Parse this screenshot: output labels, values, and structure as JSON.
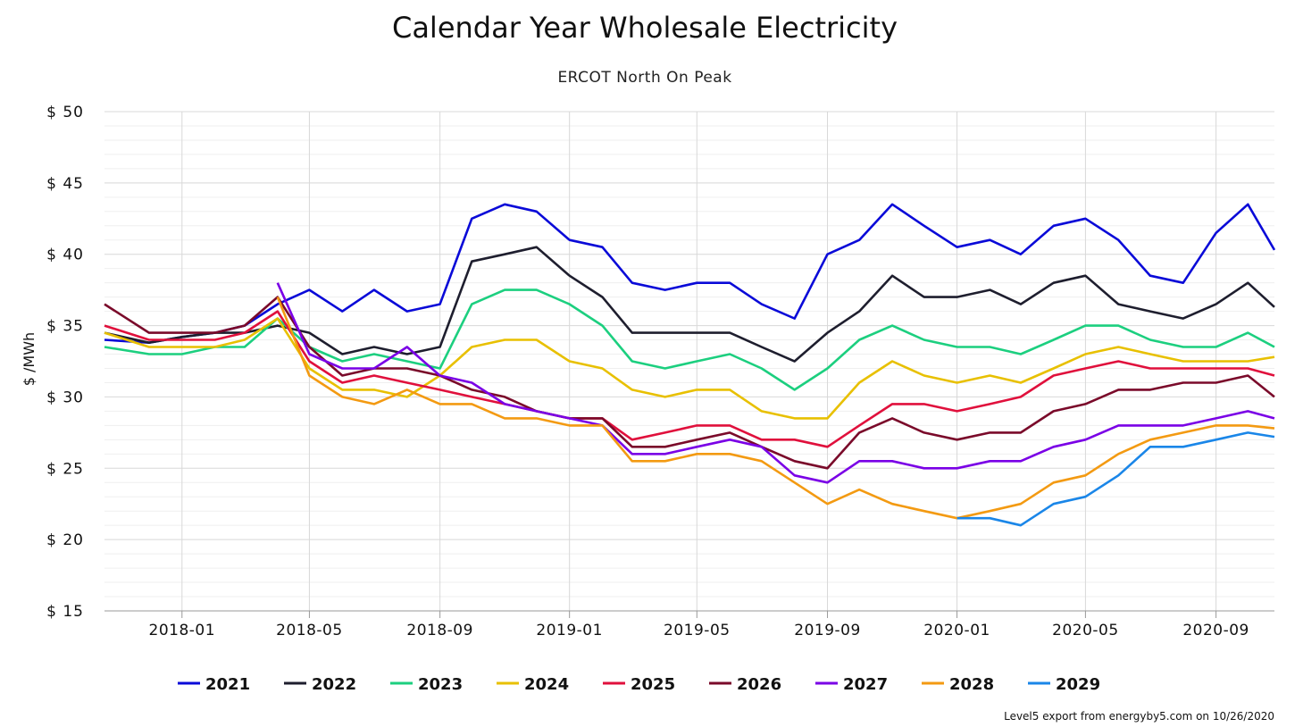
{
  "chart_data": {
    "type": "line",
    "title": "Calendar Year Wholesale Electricity",
    "subtitle": "ERCOT North On Peak",
    "ylabel": "$ /MWh",
    "xlabel": "",
    "ylim": [
      15,
      50
    ],
    "y_ticks": [
      50,
      45,
      40,
      35,
      30,
      25,
      20,
      15
    ],
    "y_tick_labels": [
      "$ 50",
      "$ 45",
      "$ 40",
      "$ 35",
      "$ 30",
      "$ 25",
      "$ 20",
      "$ 15"
    ],
    "xlim": [
      "2017-10-20",
      "2020-10-26"
    ],
    "x_ticks": [
      "2018-01-01",
      "2018-05-01",
      "2018-09-01",
      "2019-01-01",
      "2019-05-01",
      "2019-09-01",
      "2020-01-01",
      "2020-05-01",
      "2020-09-01"
    ],
    "x_tick_labels": [
      "2018-01",
      "2018-05",
      "2018-09",
      "2019-01",
      "2019-05",
      "2019-09",
      "2020-01",
      "2020-05",
      "2020-09"
    ],
    "grid": true,
    "legend_position": "bottom",
    "credit": "Level5 export from energyby5.com on 10/26/2020",
    "series": [
      {
        "name": "2021",
        "color": "#0a0ad8",
        "x": [
          "2017-10-20",
          "2017-12-01",
          "2018-01-01",
          "2018-02-01",
          "2018-03-01",
          "2018-04-01",
          "2018-05-01",
          "2018-06-01",
          "2018-07-01",
          "2018-08-01",
          "2018-09-01",
          "2018-10-01",
          "2018-11-01",
          "2018-12-01",
          "2019-01-01",
          "2019-02-01",
          "2019-03-01",
          "2019-04-01",
          "2019-05-01",
          "2019-06-01",
          "2019-07-01",
          "2019-08-01",
          "2019-09-01",
          "2019-10-01",
          "2019-11-01",
          "2019-12-01",
          "2020-01-01",
          "2020-02-01",
          "2020-03-01",
          "2020-04-01",
          "2020-05-01",
          "2020-06-01",
          "2020-07-01",
          "2020-08-01",
          "2020-09-01",
          "2020-10-01",
          "2020-10-26"
        ],
        "values": [
          34.0,
          33.8,
          34.2,
          34.5,
          35.0,
          36.5,
          37.5,
          36.0,
          37.5,
          36.0,
          36.5,
          42.5,
          43.5,
          43.0,
          41.0,
          40.5,
          38.0,
          37.5,
          38.0,
          38.0,
          36.5,
          35.5,
          40.0,
          41.0,
          43.5,
          42.0,
          40.5,
          41.0,
          40.0,
          42.0,
          42.5,
          41.0,
          38.5,
          38.0,
          41.5,
          43.5,
          40.3
        ]
      },
      {
        "name": "2022",
        "color": "#1e1e2e",
        "x": [
          "2017-10-20",
          "2017-12-01",
          "2018-01-01",
          "2018-02-01",
          "2018-03-01",
          "2018-04-01",
          "2018-05-01",
          "2018-06-01",
          "2018-07-01",
          "2018-08-01",
          "2018-09-01",
          "2018-10-01",
          "2018-11-01",
          "2018-12-01",
          "2019-01-01",
          "2019-02-01",
          "2019-03-01",
          "2019-04-01",
          "2019-05-01",
          "2019-06-01",
          "2019-07-01",
          "2019-08-01",
          "2019-09-01",
          "2019-10-01",
          "2019-11-01",
          "2019-12-01",
          "2020-01-01",
          "2020-02-01",
          "2020-03-01",
          "2020-04-01",
          "2020-05-01",
          "2020-06-01",
          "2020-07-01",
          "2020-08-01",
          "2020-09-01",
          "2020-10-01",
          "2020-10-26"
        ],
        "values": [
          34.5,
          33.8,
          34.2,
          34.5,
          34.5,
          35.0,
          34.5,
          33.0,
          33.5,
          33.0,
          33.5,
          39.5,
          40.0,
          40.5,
          38.5,
          37.0,
          34.5,
          34.5,
          34.5,
          34.5,
          33.5,
          32.5,
          34.5,
          36.0,
          38.5,
          37.0,
          37.0,
          37.5,
          36.5,
          38.0,
          38.5,
          36.5,
          36.0,
          35.5,
          36.5,
          38.0,
          36.3
        ]
      },
      {
        "name": "2023",
        "color": "#1ccf7f",
        "x": [
          "2017-10-20",
          "2017-12-01",
          "2018-01-01",
          "2018-02-01",
          "2018-03-01",
          "2018-04-01",
          "2018-05-01",
          "2018-06-01",
          "2018-07-01",
          "2018-08-01",
          "2018-09-01",
          "2018-10-01",
          "2018-11-01",
          "2018-12-01",
          "2019-01-01",
          "2019-02-01",
          "2019-03-01",
          "2019-04-01",
          "2019-05-01",
          "2019-06-01",
          "2019-07-01",
          "2019-08-01",
          "2019-09-01",
          "2019-10-01",
          "2019-11-01",
          "2019-12-01",
          "2020-01-01",
          "2020-02-01",
          "2020-03-01",
          "2020-04-01",
          "2020-05-01",
          "2020-06-01",
          "2020-07-01",
          "2020-08-01",
          "2020-09-01",
          "2020-10-01",
          "2020-10-26"
        ],
        "values": [
          33.5,
          33.0,
          33.0,
          33.5,
          33.5,
          35.5,
          33.5,
          32.5,
          33.0,
          32.5,
          32.0,
          36.5,
          37.5,
          37.5,
          36.5,
          35.0,
          32.5,
          32.0,
          32.5,
          33.0,
          32.0,
          30.5,
          32.0,
          34.0,
          35.0,
          34.0,
          33.5,
          33.5,
          33.0,
          34.0,
          35.0,
          35.0,
          34.0,
          33.5,
          33.5,
          34.5,
          33.5
        ]
      },
      {
        "name": "2024",
        "color": "#e8c000",
        "x": [
          "2017-10-20",
          "2017-12-01",
          "2018-01-01",
          "2018-02-01",
          "2018-03-01",
          "2018-04-01",
          "2018-05-01",
          "2018-06-01",
          "2018-07-01",
          "2018-08-01",
          "2018-09-01",
          "2018-10-01",
          "2018-11-01",
          "2018-12-01",
          "2019-01-01",
          "2019-02-01",
          "2019-03-01",
          "2019-04-01",
          "2019-05-01",
          "2019-06-01",
          "2019-07-01",
          "2019-08-01",
          "2019-09-01",
          "2019-10-01",
          "2019-11-01",
          "2019-12-01",
          "2020-01-01",
          "2020-02-01",
          "2020-03-01",
          "2020-04-01",
          "2020-05-01",
          "2020-06-01",
          "2020-07-01",
          "2020-08-01",
          "2020-09-01",
          "2020-10-01",
          "2020-10-26"
        ],
        "values": [
          34.5,
          33.5,
          33.5,
          33.5,
          34.0,
          35.5,
          32.0,
          30.5,
          30.5,
          30.0,
          31.5,
          33.5,
          34.0,
          34.0,
          32.5,
          32.0,
          30.5,
          30.0,
          30.5,
          30.5,
          29.0,
          28.5,
          28.5,
          31.0,
          32.5,
          31.5,
          31.0,
          31.5,
          31.0,
          32.0,
          33.0,
          33.5,
          33.0,
          32.5,
          32.5,
          32.5,
          32.8
        ]
      },
      {
        "name": "2025",
        "color": "#e0103c",
        "x": [
          "2017-10-20",
          "2017-12-01",
          "2018-01-01",
          "2018-02-01",
          "2018-03-01",
          "2018-04-01",
          "2018-05-01",
          "2018-06-01",
          "2018-07-01",
          "2018-08-01",
          "2018-09-01",
          "2018-10-01",
          "2018-11-01",
          "2018-12-01",
          "2019-01-01",
          "2019-02-01",
          "2019-03-01",
          "2019-04-01",
          "2019-05-01",
          "2019-06-01",
          "2019-07-01",
          "2019-08-01",
          "2019-09-01",
          "2019-10-01",
          "2019-11-01",
          "2019-12-01",
          "2020-01-01",
          "2020-02-01",
          "2020-03-01",
          "2020-04-01",
          "2020-05-01",
          "2020-06-01",
          "2020-07-01",
          "2020-08-01",
          "2020-09-01",
          "2020-10-01",
          "2020-10-26"
        ],
        "values": [
          35.0,
          34.0,
          34.0,
          34.0,
          34.5,
          36.0,
          32.5,
          31.0,
          31.5,
          31.0,
          30.5,
          30.0,
          29.5,
          29.0,
          28.5,
          28.5,
          27.0,
          27.5,
          28.0,
          28.0,
          27.0,
          27.0,
          26.5,
          28.0,
          29.5,
          29.5,
          29.0,
          29.5,
          30.0,
          31.5,
          32.0,
          32.5,
          32.0,
          32.0,
          32.0,
          32.0,
          31.5
        ]
      },
      {
        "name": "2026",
        "color": "#7a0a2a",
        "x": [
          "2017-10-20",
          "2017-12-01",
          "2018-01-01",
          "2018-02-01",
          "2018-03-01",
          "2018-04-01",
          "2018-05-01",
          "2018-06-01",
          "2018-07-01",
          "2018-08-01",
          "2018-09-01",
          "2018-10-01",
          "2018-11-01",
          "2018-12-01",
          "2019-01-01",
          "2019-02-01",
          "2019-03-01",
          "2019-04-01",
          "2019-05-01",
          "2019-06-01",
          "2019-07-01",
          "2019-08-01",
          "2019-09-01",
          "2019-10-01",
          "2019-11-01",
          "2019-12-01",
          "2020-01-01",
          "2020-02-01",
          "2020-03-01",
          "2020-04-01",
          "2020-05-01",
          "2020-06-01",
          "2020-07-01",
          "2020-08-01",
          "2020-09-01",
          "2020-10-01",
          "2020-10-26"
        ],
        "values": [
          36.5,
          34.5,
          34.5,
          34.5,
          35.0,
          37.0,
          33.5,
          31.5,
          32.0,
          32.0,
          31.5,
          30.5,
          30.0,
          29.0,
          28.5,
          28.5,
          26.5,
          26.5,
          27.0,
          27.5,
          26.5,
          25.5,
          25.0,
          27.5,
          28.5,
          27.5,
          27.0,
          27.5,
          27.5,
          29.0,
          29.5,
          30.5,
          30.5,
          31.0,
          31.0,
          31.5,
          30.0
        ]
      },
      {
        "name": "2027",
        "color": "#7a00e6",
        "x": [
          "2018-04-01",
          "2018-05-01",
          "2018-06-01",
          "2018-07-01",
          "2018-08-01",
          "2018-09-01",
          "2018-10-01",
          "2018-11-01",
          "2018-12-01",
          "2019-01-01",
          "2019-02-01",
          "2019-03-01",
          "2019-04-01",
          "2019-05-01",
          "2019-06-01",
          "2019-07-01",
          "2019-08-01",
          "2019-09-01",
          "2019-10-01",
          "2019-11-01",
          "2019-12-01",
          "2020-01-01",
          "2020-02-01",
          "2020-03-01",
          "2020-04-01",
          "2020-05-01",
          "2020-06-01",
          "2020-07-01",
          "2020-08-01",
          "2020-09-01",
          "2020-10-01",
          "2020-10-26"
        ],
        "values": [
          38.0,
          33.0,
          32.0,
          32.0,
          33.5,
          31.5,
          31.0,
          29.5,
          29.0,
          28.5,
          28.0,
          26.0,
          26.0,
          26.5,
          27.0,
          26.5,
          24.5,
          24.0,
          25.5,
          25.5,
          25.0,
          25.0,
          25.5,
          25.5,
          26.5,
          27.0,
          28.0,
          28.0,
          28.0,
          28.5,
          29.0,
          28.5
        ]
      },
      {
        "name": "2028",
        "color": "#f39a12",
        "x": [
          "2018-04-01",
          "2018-05-01",
          "2018-06-01",
          "2018-07-01",
          "2018-08-01",
          "2018-09-01",
          "2018-10-01",
          "2018-11-01",
          "2018-12-01",
          "2019-01-01",
          "2019-02-01",
          "2019-03-01",
          "2019-04-01",
          "2019-05-01",
          "2019-06-01",
          "2019-07-01",
          "2019-08-01",
          "2019-09-01",
          "2019-10-01",
          "2019-11-01",
          "2019-12-01",
          "2020-01-01",
          "2020-02-01",
          "2020-03-01",
          "2020-04-01",
          "2020-05-01",
          "2020-06-01",
          "2020-07-01",
          "2020-08-01",
          "2020-09-01",
          "2020-10-01",
          "2020-10-26"
        ],
        "values": [
          37.0,
          31.5,
          30.0,
          29.5,
          30.5,
          29.5,
          29.5,
          28.5,
          28.5,
          28.0,
          28.0,
          25.5,
          25.5,
          26.0,
          26.0,
          25.5,
          24.0,
          22.5,
          23.5,
          22.5,
          22.0,
          21.5,
          22.0,
          22.5,
          24.0,
          24.5,
          26.0,
          27.0,
          27.5,
          28.0,
          28.0,
          27.8
        ]
      },
      {
        "name": "2029",
        "color": "#1a86e8",
        "x": [
          "2020-01-01",
          "2020-02-01",
          "2020-03-01",
          "2020-04-01",
          "2020-05-01",
          "2020-06-01",
          "2020-07-01",
          "2020-08-01",
          "2020-09-01",
          "2020-10-01",
          "2020-10-26"
        ],
        "values": [
          21.5,
          21.5,
          21.0,
          22.5,
          23.0,
          24.5,
          26.5,
          26.5,
          27.0,
          27.5,
          27.2
        ]
      }
    ]
  }
}
